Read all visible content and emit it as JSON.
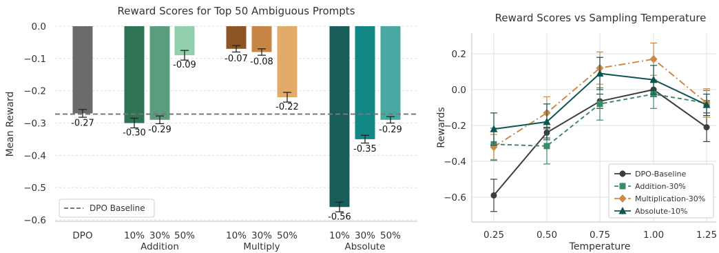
{
  "chart_data": [
    {
      "type": "bar",
      "title": "Reward Scores for Top 50 Ambiguous Prompts",
      "ylabel": "Mean Reward",
      "xlabel": "",
      "ylim": [
        -0.6,
        0.0
      ],
      "yticks": [
        0.0,
        -0.1,
        -0.2,
        -0.3,
        -0.4,
        -0.5,
        -0.6
      ],
      "grid": true,
      "legend_position": "bottom-left",
      "baseline": {
        "label": "DPO Baseline",
        "value": -0.27
      },
      "groups": [
        {
          "name": "",
          "bars": [
            {
              "label": "DPO",
              "value": -0.27,
              "error": 0.012,
              "text": "-0.27",
              "color": "#6b6b6b"
            }
          ]
        },
        {
          "name": "Addition",
          "bars": [
            {
              "label": "10%",
              "value": -0.3,
              "error": 0.015,
              "text": "-0.30",
              "color": "#2e7454"
            },
            {
              "label": "30%",
              "value": -0.29,
              "error": 0.012,
              "text": "-0.29",
              "color": "#5a9e7e"
            },
            {
              "label": "50%",
              "value": -0.09,
              "error": 0.015,
              "text": "-0.09",
              "color": "#92cfad"
            }
          ]
        },
        {
          "name": "Multiply",
          "bars": [
            {
              "label": "10%",
              "value": -0.07,
              "error": 0.01,
              "text": "-0.07",
              "color": "#8c5526"
            },
            {
              "label": "30%",
              "value": -0.08,
              "error": 0.01,
              "text": "-0.08",
              "color": "#c88646"
            },
            {
              "label": "50%",
              "value": -0.22,
              "error": 0.015,
              "text": "-0.22",
              "color": "#e3ab69"
            }
          ]
        },
        {
          "name": "Absolute",
          "bars": [
            {
              "label": "10%",
              "value": -0.56,
              "error": 0.015,
              "text": "-0.56",
              "color": "#195d5b"
            },
            {
              "label": "30%",
              "value": -0.35,
              "error": 0.012,
              "text": "-0.35",
              "color": "#118886"
            },
            {
              "label": "50%",
              "value": -0.29,
              "error": 0.01,
              "text": "-0.29",
              "color": "#4aa8a3"
            }
          ]
        }
      ]
    },
    {
      "type": "line",
      "title": "Reward Scores vs Sampling Temperature",
      "xlabel": "Temperature",
      "ylabel": "Rewards",
      "x": [
        0.25,
        0.5,
        0.75,
        1.0,
        1.25
      ],
      "xticks": [
        "0.25",
        "0.50",
        "0.75",
        "1.00",
        "1.25"
      ],
      "ylim": [
        -0.72,
        0.32
      ],
      "yticks": [
        0.2,
        0.0,
        -0.2,
        -0.4,
        -0.6
      ],
      "grid": true,
      "legend_position": "bottom-right",
      "series": [
        {
          "name": "DPO-Baseline",
          "values": [
            -0.59,
            -0.24,
            -0.065,
            0.0,
            -0.21
          ],
          "errors": [
            0.09,
            0.03,
            0.04,
            0.04,
            0.08
          ],
          "color": "#3d3d3d",
          "marker": "circle",
          "dash": ""
        },
        {
          "name": "Addition-30%",
          "values": [
            -0.305,
            -0.315,
            -0.08,
            -0.025,
            -0.075
          ],
          "errors": [
            0.09,
            0.1,
            0.09,
            0.08,
            0.07
          ],
          "color": "#3e8a68",
          "marker": "square",
          "dash": "6,4"
        },
        {
          "name": "Multiplication-30%",
          "values": [
            -0.32,
            -0.13,
            0.12,
            0.17,
            -0.075
          ],
          "errors": [
            0.07,
            0.09,
            0.09,
            0.09,
            0.08
          ],
          "color": "#cc8a48",
          "marker": "diamond",
          "dash": "10,4,2,4"
        },
        {
          "name": "Absolute-10%",
          "values": [
            -0.22,
            -0.18,
            0.09,
            0.055,
            -0.085
          ],
          "errors": [
            0.09,
            0.1,
            0.09,
            0.08,
            0.06
          ],
          "color": "#0e5450",
          "marker": "triangle",
          "dash": ""
        }
      ]
    }
  ]
}
